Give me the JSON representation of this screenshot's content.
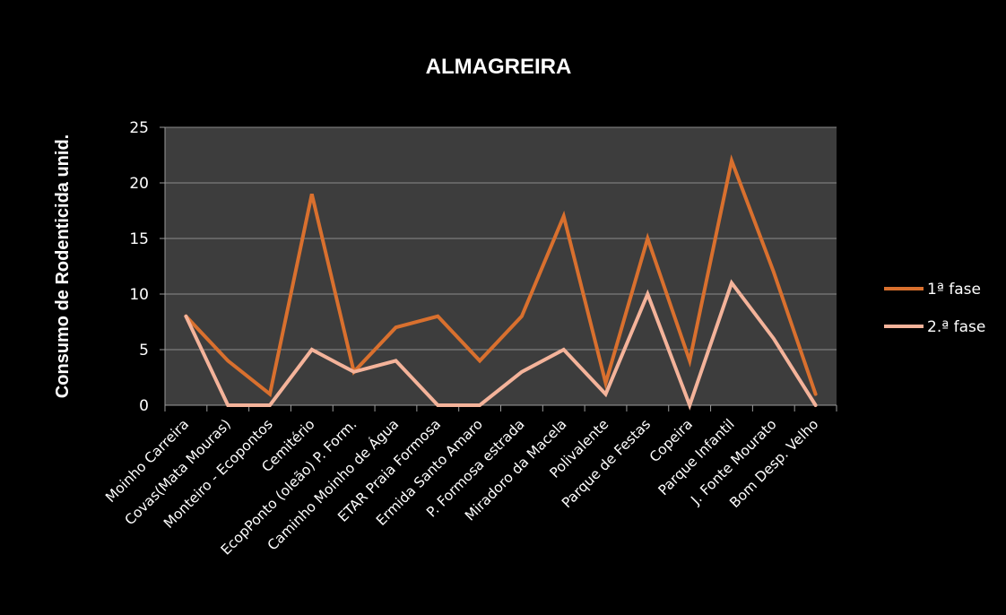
{
  "chart_data": {
    "type": "line",
    "title": "ALMAGREIRA",
    "xlabel": "",
    "ylabel": "Consumo de Rodenticida unid.",
    "ylim": [
      0,
      25
    ],
    "yticks": [
      0,
      5,
      10,
      15,
      20,
      25
    ],
    "grid": true,
    "legend_position": "right",
    "background": "#3d3d3d",
    "categories": [
      "Moinho Carreira",
      "Covas(Mata Mouras)",
      "Monteiro - Ecopontos",
      "Cemitério",
      "EcopPonto (oleão) P. Form.",
      "Caminho Moinho de Água",
      "ETAR Praia Formosa",
      "Ermida Santo Amaro",
      "P. Formosa estrada",
      "Miradoro da Macela",
      "Polivalente",
      "Parque de Festas",
      "Copeira",
      "Parque Infantil",
      "J. Fonte Mourato",
      "Bom Desp.  Velho"
    ],
    "series": [
      {
        "name": "1ª fase",
        "color": "#d9702e",
        "values": [
          8,
          4,
          1,
          19,
          3,
          7,
          8,
          4,
          8,
          17,
          2,
          15,
          4,
          22,
          12,
          1
        ]
      },
      {
        "name": "2.ª fase",
        "color": "#f4b39a",
        "values": [
          8,
          0,
          0,
          5,
          3,
          4,
          0,
          0,
          3,
          5,
          1,
          10,
          0,
          11,
          6,
          0
        ]
      }
    ]
  }
}
